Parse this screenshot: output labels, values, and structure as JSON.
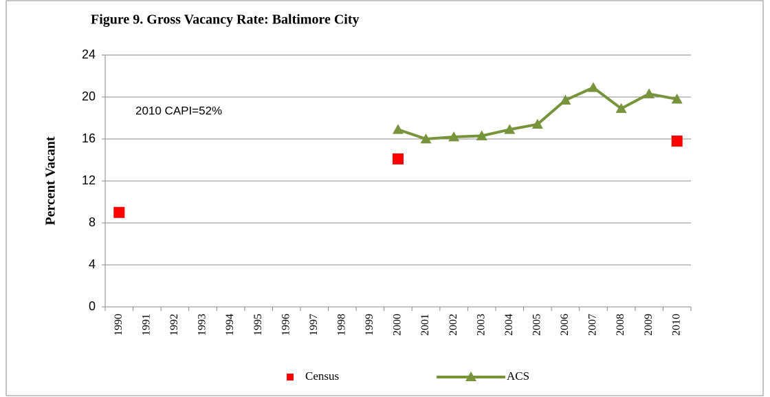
{
  "chart_data": {
    "type": "line",
    "title": "Figure 9. Gross Vacancy Rate:  Baltimore City",
    "y_label": "Percent Vacant",
    "annotation": "2010 CAPI=52%",
    "categories": [
      "1990",
      "1991",
      "1992",
      "1993",
      "1994",
      "1995",
      "1996",
      "1997",
      "1998",
      "1999",
      "2000",
      "2001",
      "2002",
      "2003",
      "2004",
      "2005",
      "2006",
      "2007",
      "2008",
      "2009",
      "2010"
    ],
    "series": [
      {
        "name": "Census",
        "color": "#ff0000",
        "marker": "square",
        "line": false,
        "values": [
          9.0,
          null,
          null,
          null,
          null,
          null,
          null,
          null,
          null,
          null,
          14.1,
          null,
          null,
          null,
          null,
          null,
          null,
          null,
          null,
          null,
          15.8
        ]
      },
      {
        "name": "ACS",
        "color": "#77933c",
        "marker": "triangle",
        "line": true,
        "values": [
          null,
          null,
          null,
          null,
          null,
          null,
          null,
          null,
          null,
          null,
          16.9,
          16.0,
          16.2,
          16.3,
          16.9,
          17.4,
          19.7,
          20.9,
          18.9,
          20.3,
          19.8
        ]
      }
    ],
    "ylim": [
      0,
      24
    ],
    "yticks": [
      0,
      4,
      8,
      12,
      16,
      20,
      24
    ],
    "grid": true,
    "legend": "bottom"
  }
}
